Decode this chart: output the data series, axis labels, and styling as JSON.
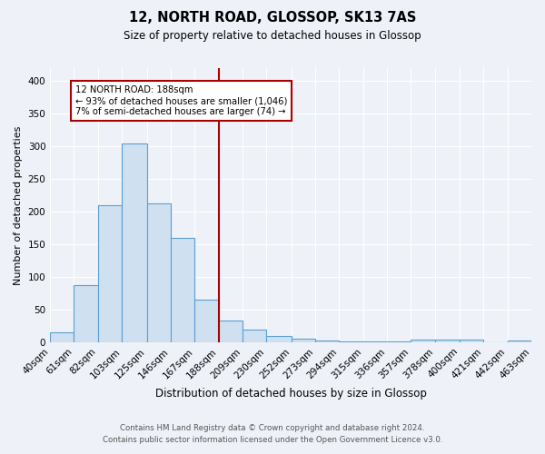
{
  "title": "12, NORTH ROAD, GLOSSOP, SK13 7AS",
  "subtitle": "Size of property relative to detached houses in Glossop",
  "xlabel": "Distribution of detached houses by size in Glossop",
  "ylabel": "Number of detached properties",
  "footer_line1": "Contains HM Land Registry data © Crown copyright and database right 2024.",
  "footer_line2": "Contains public sector information licensed under the Open Government Licence v3.0.",
  "bin_labels": [
    "40sqm",
    "61sqm",
    "82sqm",
    "103sqm",
    "125sqm",
    "146sqm",
    "167sqm",
    "188sqm",
    "209sqm",
    "230sqm",
    "252sqm",
    "273sqm",
    "294sqm",
    "315sqm",
    "336sqm",
    "357sqm",
    "378sqm",
    "400sqm",
    "421sqm",
    "442sqm",
    "463sqm"
  ],
  "bar_values": [
    15,
    88,
    210,
    305,
    213,
    160,
    65,
    33,
    19,
    10,
    6,
    3,
    2,
    2,
    2,
    4,
    4,
    4,
    0,
    3
  ],
  "bar_color": "#cfe0f0",
  "bar_edge_color": "#5a9fd4",
  "marker_x_label": "188sqm",
  "marker_color": "#aa0000",
  "annotation_text": "12 NORTH ROAD: 188sqm\n← 93% of detached houses are smaller (1,046)\n7% of semi-detached houses are larger (74) →",
  "annotation_box_color": "#ffffff",
  "annotation_box_edge_color": "#aa0000",
  "bg_color": "#eef2f8",
  "grid_color": "#ffffff",
  "ylim": [
    0,
    420
  ],
  "yticks": [
    0,
    50,
    100,
    150,
    200,
    250,
    300,
    350,
    400
  ]
}
